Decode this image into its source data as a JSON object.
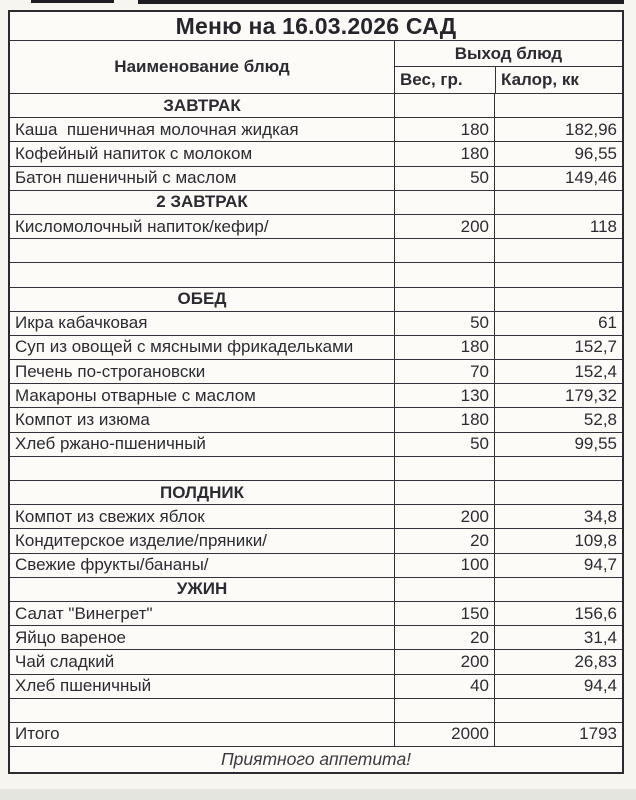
{
  "page": {
    "title": "Меню на 16.03.2026 САД",
    "footer": "Приятного аппетита!"
  },
  "table": {
    "columns": {
      "name": "Наименование блюд",
      "group": "Выход блюд",
      "weight": "Вес, гр.",
      "calories": "Калор, кк"
    },
    "rows": [
      {
        "type": "section",
        "name": "ЗАВТРАК"
      },
      {
        "type": "item",
        "name": "Каша  пшеничная молочная жидкая",
        "weight": "180",
        "calories": "182,96"
      },
      {
        "type": "item",
        "name": "Кофейный напиток с молоком",
        "weight": "180",
        "calories": "96,55"
      },
      {
        "type": "item",
        "name": "Батон пшеничный с маслом",
        "weight": "50",
        "calories": "149,46"
      },
      {
        "type": "section",
        "name": "2 ЗАВТРАК"
      },
      {
        "type": "item",
        "name": "Кисломолочный напиток/кефир/",
        "weight": "200",
        "calories": "118"
      },
      {
        "type": "empty"
      },
      {
        "type": "empty"
      },
      {
        "type": "section",
        "name": "ОБЕД"
      },
      {
        "type": "item",
        "name": "Икра кабачковая",
        "weight": "50",
        "calories": "61"
      },
      {
        "type": "item",
        "name": "Суп из овощей с мясными фрикадельками",
        "weight": "180",
        "calories": "152,7"
      },
      {
        "type": "item",
        "name": "Печень по-строгановски",
        "weight": "70",
        "calories": "152,4"
      },
      {
        "type": "item",
        "name": "Макароны отварные с маслом",
        "weight": "130",
        "calories": "179,32"
      },
      {
        "type": "item",
        "name": "Компот из изюма",
        "weight": "180",
        "calories": "52,8"
      },
      {
        "type": "item",
        "name": "Хлеб ржано-пшеничный",
        "weight": "50",
        "calories": "99,55"
      },
      {
        "type": "empty"
      },
      {
        "type": "section",
        "name": "ПОЛДНИК"
      },
      {
        "type": "item",
        "name": "Компот из свежих яблок",
        "weight": "200",
        "calories": "34,8"
      },
      {
        "type": "item",
        "name": "Кондитерское изделие/пряники/",
        "weight": "20",
        "calories": "109,8"
      },
      {
        "type": "item",
        "name": "Свежие фрукты/бананы/",
        "weight": "100",
        "calories": "94,7"
      },
      {
        "type": "section",
        "name": "УЖИН"
      },
      {
        "type": "item",
        "name": "Салат \"Винегрет\"",
        "weight": "150",
        "calories": "156,6"
      },
      {
        "type": "item",
        "name": "Яйцо вареное",
        "weight": "20",
        "calories": "31,4"
      },
      {
        "type": "item",
        "name": "Чай сладкий",
        "weight": "200",
        "calories": "26,83"
      },
      {
        "type": "item",
        "name": "Хлеб пшеничный",
        "weight": "40",
        "calories": "94,4"
      },
      {
        "type": "empty"
      },
      {
        "type": "total",
        "name": "Итого",
        "weight": "2000",
        "calories": "1793"
      }
    ]
  },
  "colors": {
    "paper": "#fcfbf7",
    "page_background": "#f6f5f0",
    "line": "#343239",
    "text": "#2c2b32"
  }
}
